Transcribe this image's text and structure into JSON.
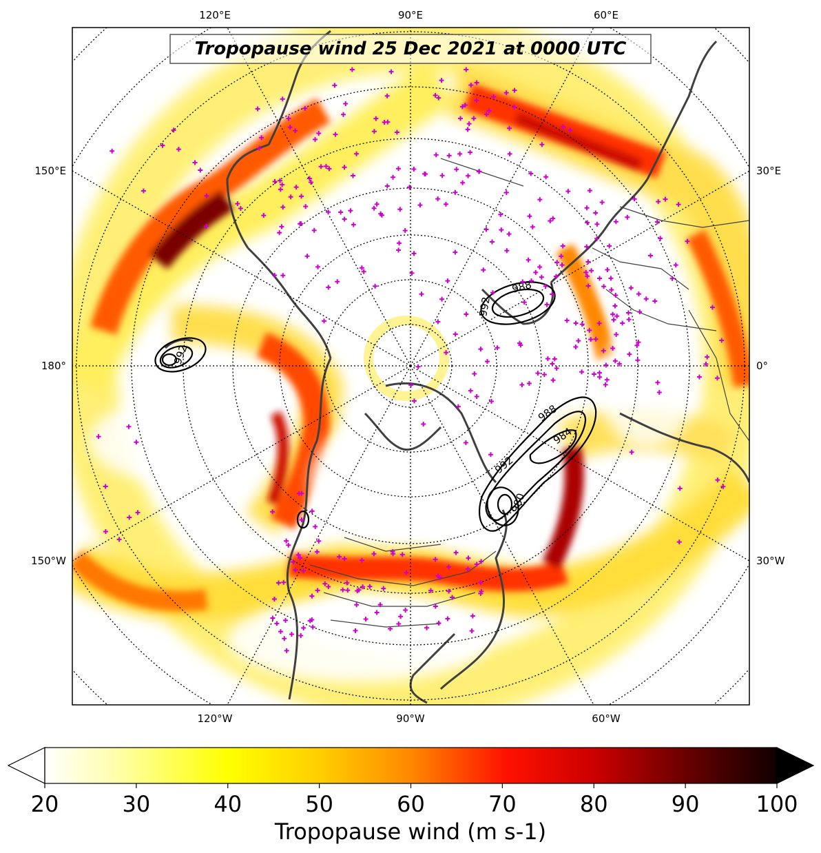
{
  "title": "Tropopause wind 25 Dec 2021 at 0000 UTC",
  "top_lon_labels": [
    "120°E",
    "90°E",
    "60°E"
  ],
  "bottom_lon_labels": [
    "120°W",
    "90°W",
    "60°W"
  ],
  "left_lon_labels": [
    "150°E",
    "180°",
    "150°W"
  ],
  "right_lon_labels": [
    "30°E",
    "0°",
    "30°W"
  ],
  "colorbar": {
    "label": "Tropopause wind (m s-1)",
    "min": 20,
    "max": 100,
    "ticks": [
      "20",
      "30",
      "40",
      "50",
      "60",
      "70",
      "80",
      "90",
      "100"
    ],
    "extend": "both",
    "colors": [
      "#ffffff",
      "#ffff99",
      "#ffff00",
      "#ffcc00",
      "#ff8800",
      "#ff2200",
      "#dd0000",
      "#990000",
      "#550000",
      "#000000"
    ]
  },
  "contours": {
    "labels": [
      "992",
      "988",
      "984",
      "992",
      "980",
      "992",
      "988"
    ]
  },
  "colors": {
    "marker": "#cc00cc",
    "coast": "#404040",
    "graticule": "#000000"
  }
}
